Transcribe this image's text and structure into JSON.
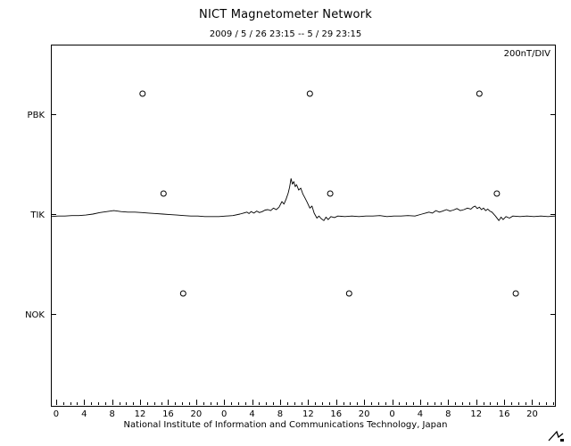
{
  "title": "NICT Magnetometer Network",
  "subtitle": "2009 / 5 / 26  23:15 -- 5 / 29  23:15",
  "footer": "National Institute of Information and Communications Technology, Japan",
  "scale_label": "200nT/DIV",
  "chart_data": {
    "type": "line",
    "hours_span": 72,
    "num_days": 3,
    "first_tick_offset_hours": 0.75,
    "x_tick_labels_per_day": [
      0,
      4,
      8,
      12,
      16,
      20
    ],
    "div_nT": 200,
    "line_color": "#000000",
    "grid": false,
    "stations": [
      {
        "name": "PBK",
        "has_trace": false
      },
      {
        "name": "TIK",
        "has_trace": true
      },
      {
        "name": "NOK",
        "has_trace": false
      }
    ],
    "markers": {
      "symbol": "circle",
      "radius_px": 3,
      "offset_nT": 41,
      "points": [
        {
          "station": "PBK",
          "t": 13.1
        },
        {
          "station": "PBK",
          "t": 37.0
        },
        {
          "station": "PBK",
          "t": 61.2
        },
        {
          "station": "TIK",
          "t": 16.1
        },
        {
          "station": "TIK",
          "t": 39.9
        },
        {
          "station": "TIK",
          "t": 63.7
        },
        {
          "station": "NOK",
          "t": 18.9
        },
        {
          "station": "NOK",
          "t": 42.6
        },
        {
          "station": "NOK",
          "t": 66.4
        }
      ]
    },
    "series": [
      {
        "name": "TIK H-component (nT, relative)",
        "points": [
          [
            0,
            -5
          ],
          [
            1,
            -4
          ],
          [
            2,
            -4
          ],
          [
            3,
            -3
          ],
          [
            4,
            -3
          ],
          [
            5,
            -2
          ],
          [
            6,
            0
          ],
          [
            7,
            3
          ],
          [
            8,
            5
          ],
          [
            9,
            7
          ],
          [
            10,
            5
          ],
          [
            11,
            4
          ],
          [
            12,
            4
          ],
          [
            13,
            3
          ],
          [
            14,
            2
          ],
          [
            15,
            1
          ],
          [
            16,
            0
          ],
          [
            17,
            -1
          ],
          [
            18,
            -2
          ],
          [
            19,
            -3
          ],
          [
            20,
            -4
          ],
          [
            21,
            -4
          ],
          [
            22,
            -5
          ],
          [
            23,
            -5
          ],
          [
            24,
            -5
          ],
          [
            25,
            -4
          ],
          [
            26,
            -3
          ],
          [
            27,
            0
          ],
          [
            27.5,
            2
          ],
          [
            28,
            4
          ],
          [
            28.3,
            1
          ],
          [
            28.6,
            5
          ],
          [
            29,
            2
          ],
          [
            29.4,
            6
          ],
          [
            29.8,
            3
          ],
          [
            30.2,
            5
          ],
          [
            30.6,
            8
          ],
          [
            31,
            9
          ],
          [
            31.4,
            7
          ],
          [
            31.8,
            12
          ],
          [
            32.2,
            9
          ],
          [
            32.6,
            14
          ],
          [
            33,
            25
          ],
          [
            33.3,
            20
          ],
          [
            33.6,
            30
          ],
          [
            33.9,
            42
          ],
          [
            34.1,
            54
          ],
          [
            34.3,
            71
          ],
          [
            34.5,
            60
          ],
          [
            34.7,
            65
          ],
          [
            34.9,
            55
          ],
          [
            35.1,
            59
          ],
          [
            35.4,
            48
          ],
          [
            35.7,
            52
          ],
          [
            36,
            40
          ],
          [
            36.3,
            32
          ],
          [
            36.6,
            24
          ],
          [
            37,
            12
          ],
          [
            37.3,
            16
          ],
          [
            37.6,
            2
          ],
          [
            38,
            -8
          ],
          [
            38.3,
            -4
          ],
          [
            38.6,
            -9
          ],
          [
            39,
            -13
          ],
          [
            39.3,
            -6
          ],
          [
            39.6,
            -11
          ],
          [
            40,
            -5
          ],
          [
            40.5,
            -7
          ],
          [
            41,
            -4
          ],
          [
            42,
            -5
          ],
          [
            43,
            -4
          ],
          [
            44,
            -5
          ],
          [
            45,
            -4
          ],
          [
            46,
            -4
          ],
          [
            47,
            -3
          ],
          [
            48,
            -5
          ],
          [
            49,
            -4
          ],
          [
            50,
            -4
          ],
          [
            51,
            -3
          ],
          [
            52,
            -4
          ],
          [
            53,
            0
          ],
          [
            53.5,
            2
          ],
          [
            54,
            4
          ],
          [
            54.5,
            2
          ],
          [
            55,
            7
          ],
          [
            55.5,
            4
          ],
          [
            56,
            6
          ],
          [
            56.5,
            9
          ],
          [
            57,
            6
          ],
          [
            57.5,
            8
          ],
          [
            58,
            11
          ],
          [
            58.5,
            7
          ],
          [
            59,
            9
          ],
          [
            59.5,
            12
          ],
          [
            60,
            10
          ],
          [
            60.3,
            14
          ],
          [
            60.6,
            16
          ],
          [
            60.9,
            11
          ],
          [
            61.2,
            14
          ],
          [
            61.5,
            9
          ],
          [
            61.8,
            12
          ],
          [
            62.1,
            7
          ],
          [
            62.4,
            10
          ],
          [
            62.7,
            6
          ],
          [
            63,
            4
          ],
          [
            63.5,
            -4
          ],
          [
            64,
            -13
          ],
          [
            64.3,
            -6
          ],
          [
            64.6,
            -11
          ],
          [
            65,
            -5
          ],
          [
            65.5,
            -8
          ],
          [
            66,
            -4
          ],
          [
            67,
            -5
          ],
          [
            68,
            -4
          ],
          [
            69,
            -5
          ],
          [
            70,
            -4
          ],
          [
            71,
            -5
          ],
          [
            72,
            -4
          ]
        ]
      }
    ]
  }
}
